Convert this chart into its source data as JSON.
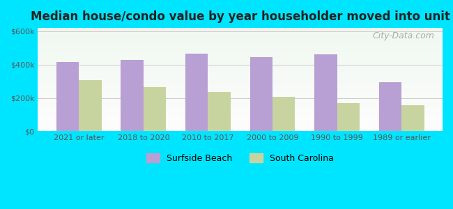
{
  "title": "Median house/condo value by year householder moved into unit",
  "categories": [
    "2021 or later",
    "2018 to 2020",
    "2010 to 2017",
    "2000 to 2009",
    "1990 to 1999",
    "1989 or earlier"
  ],
  "surfside_beach": [
    415000,
    430000,
    465000,
    445000,
    460000,
    295000
  ],
  "south_carolina": [
    305000,
    265000,
    238000,
    205000,
    170000,
    155000
  ],
  "bar_color_surfside": "#b89fd4",
  "bar_color_sc": "#c8d4a0",
  "yticks": [
    0,
    200000,
    400000,
    600000
  ],
  "ylabels": [
    "$0",
    "$200k",
    "$400k",
    "$600k"
  ],
  "ylim": [
    0,
    620000
  ],
  "background_outer": "#00e5ff",
  "background_inner_top": "#e8f5e9",
  "background_inner_bottom": "#f0fff0",
  "legend_surfside": "Surfside Beach",
  "legend_sc": "South Carolina",
  "watermark": "City-Data.com"
}
